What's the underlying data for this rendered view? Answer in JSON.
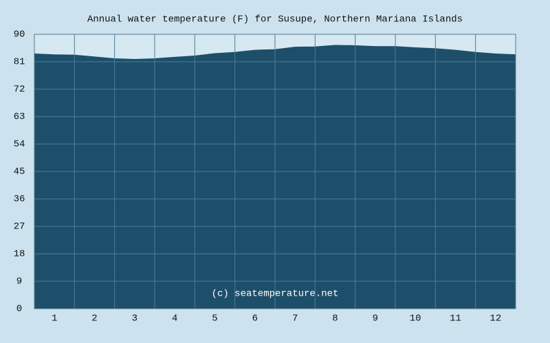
{
  "chart_data": {
    "type": "area",
    "title": "Annual water temperature (F) for Susupe, Northern Mariana Islands",
    "annotation": "(c) seatemperature.net",
    "x": [
      0.5,
      1,
      1.5,
      2,
      2.5,
      3,
      3.5,
      4,
      4.5,
      5,
      5.5,
      6,
      6.5,
      7,
      7.5,
      8,
      8.5,
      9,
      9.5,
      10,
      10.5,
      11,
      11.5,
      12,
      12.5
    ],
    "values": [
      83.6,
      83.3,
      83.2,
      82.6,
      82.0,
      81.8,
      82.0,
      82.5,
      82.9,
      83.7,
      84.1,
      84.8,
      85.0,
      85.8,
      85.9,
      86.4,
      86.3,
      86.0,
      86.0,
      85.6,
      85.3,
      84.8,
      84.1,
      83.6,
      83.3
    ],
    "color": "#1e4f6a",
    "xlim": [
      0.5,
      12.5
    ],
    "xticks": [
      1,
      2,
      3,
      4,
      5,
      6,
      7,
      8,
      9,
      10,
      11,
      12
    ],
    "ylim": [
      0,
      90
    ],
    "yticks": [
      0,
      9,
      18,
      27,
      36,
      45,
      54,
      63,
      72,
      81,
      90
    ],
    "grid": true
  }
}
